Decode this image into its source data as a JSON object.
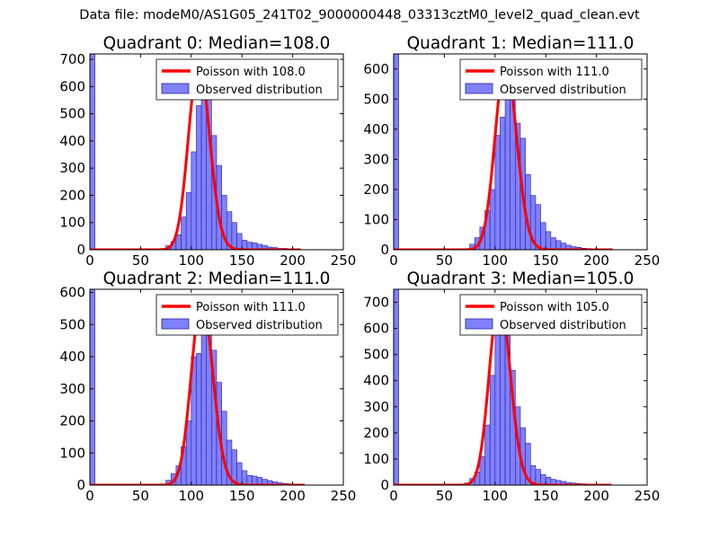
{
  "figure_title": "Data file: modeM0/AS1G05_241T02_9000000448_03313cztM0_level2_quad_clean.evt",
  "colors": {
    "bar_fill": "#8080ff",
    "bar_stroke": "#2020a0",
    "poisson_line": "#ff0000",
    "axis": "#000000"
  },
  "chart_data": [
    {
      "type": "bar",
      "title": "Quadrant 0: Median=108.0",
      "xlim": [
        0,
        250
      ],
      "ylim": [
        0,
        720
      ],
      "xticks": [
        0,
        50,
        100,
        150,
        200,
        250
      ],
      "yticks": [
        0,
        100,
        200,
        300,
        400,
        500,
        600,
        700
      ],
      "legend_position": "top-right",
      "legend": [
        "Poisson with 108.0",
        "Observed distribution"
      ],
      "bin_width": 5,
      "bins": [
        [
          0,
          720
        ],
        [
          70,
          4
        ],
        [
          75,
          15
        ],
        [
          80,
          30
        ],
        [
          85,
          55
        ],
        [
          90,
          120
        ],
        [
          95,
          210
        ],
        [
          100,
          360
        ],
        [
          105,
          530
        ],
        [
          110,
          610
        ],
        [
          115,
          580
        ],
        [
          120,
          420
        ],
        [
          125,
          310
        ],
        [
          130,
          200
        ],
        [
          135,
          140
        ],
        [
          140,
          100
        ],
        [
          145,
          60
        ],
        [
          150,
          35
        ],
        [
          155,
          28
        ],
        [
          160,
          25
        ],
        [
          165,
          20
        ],
        [
          170,
          16
        ],
        [
          175,
          10
        ],
        [
          180,
          8
        ],
        [
          185,
          5
        ],
        [
          190,
          5
        ],
        [
          195,
          3
        ],
        [
          200,
          2
        ]
      ],
      "poisson_lambda": 108.0,
      "poisson_peak": 690,
      "poisson_range": [
        0,
        208
      ]
    },
    {
      "type": "bar",
      "title": "Quadrant 1: Median=111.0",
      "xlim": [
        0,
        250
      ],
      "ylim": [
        0,
        650
      ],
      "xticks": [
        0,
        50,
        100,
        150,
        200,
        250
      ],
      "yticks": [
        0,
        100,
        200,
        300,
        400,
        500,
        600
      ],
      "legend_position": "top-right",
      "legend": [
        "Poisson with 111.0",
        "Observed distribution"
      ],
      "bin_width": 5,
      "bins": [
        [
          0,
          650
        ],
        [
          75,
          18
        ],
        [
          80,
          40
        ],
        [
          85,
          75
        ],
        [
          90,
          130
        ],
        [
          95,
          200
        ],
        [
          100,
          380
        ],
        [
          105,
          440
        ],
        [
          110,
          620
        ],
        [
          115,
          600
        ],
        [
          120,
          420
        ],
        [
          125,
          370
        ],
        [
          130,
          250
        ],
        [
          135,
          180
        ],
        [
          140,
          150
        ],
        [
          145,
          90
        ],
        [
          150,
          60
        ],
        [
          155,
          40
        ],
        [
          160,
          30
        ],
        [
          165,
          22
        ],
        [
          170,
          15
        ],
        [
          175,
          10
        ],
        [
          180,
          8
        ],
        [
          185,
          5
        ],
        [
          190,
          4
        ],
        [
          195,
          3
        ],
        [
          200,
          2
        ]
      ],
      "poisson_lambda": 111.0,
      "poisson_peak": 625,
      "poisson_range": [
        0,
        216
      ]
    },
    {
      "type": "bar",
      "title": "Quadrant 2: Median=111.0",
      "xlim": [
        0,
        250
      ],
      "ylim": [
        0,
        610
      ],
      "xticks": [
        0,
        50,
        100,
        150,
        200,
        250
      ],
      "yticks": [
        0,
        100,
        200,
        300,
        400,
        500,
        600
      ],
      "legend_position": "top-right",
      "legend": [
        "Poisson with 111.0",
        "Observed distribution"
      ],
      "bin_width": 5,
      "bins": [
        [
          0,
          610
        ],
        [
          75,
          15
        ],
        [
          80,
          35
        ],
        [
          85,
          60
        ],
        [
          90,
          120
        ],
        [
          95,
          200
        ],
        [
          100,
          400
        ],
        [
          105,
          410
        ],
        [
          110,
          580
        ],
        [
          115,
          560
        ],
        [
          120,
          420
        ],
        [
          125,
          320
        ],
        [
          130,
          230
        ],
        [
          135,
          140
        ],
        [
          140,
          110
        ],
        [
          145,
          70
        ],
        [
          150,
          45
        ],
        [
          155,
          30
        ],
        [
          160,
          28
        ],
        [
          165,
          24
        ],
        [
          170,
          18
        ],
        [
          175,
          14
        ],
        [
          180,
          10
        ],
        [
          185,
          7
        ],
        [
          190,
          5
        ],
        [
          195,
          4
        ],
        [
          200,
          3
        ]
      ],
      "poisson_lambda": 111.0,
      "poisson_peak": 580,
      "poisson_range": [
        0,
        212
      ]
    },
    {
      "type": "bar",
      "title": "Quadrant 3: Median=105.0",
      "xlim": [
        0,
        250
      ],
      "ylim": [
        0,
        750
      ],
      "xticks": [
        0,
        50,
        100,
        150,
        200,
        250
      ],
      "yticks": [
        0,
        100,
        200,
        300,
        400,
        500,
        600,
        700
      ],
      "legend_position": "top-right",
      "legend": [
        "Poisson with 105.0",
        "Observed distribution"
      ],
      "bin_width": 5,
      "bins": [
        [
          0,
          750
        ],
        [
          70,
          8
        ],
        [
          75,
          25
        ],
        [
          80,
          50
        ],
        [
          85,
          110
        ],
        [
          90,
          230
        ],
        [
          95,
          420
        ],
        [
          100,
          610
        ],
        [
          105,
          720
        ],
        [
          110,
          600
        ],
        [
          115,
          440
        ],
        [
          120,
          300
        ],
        [
          125,
          220
        ],
        [
          130,
          160
        ],
        [
          135,
          75
        ],
        [
          140,
          60
        ],
        [
          145,
          40
        ],
        [
          150,
          30
        ],
        [
          155,
          22
        ],
        [
          160,
          18
        ],
        [
          165,
          14
        ],
        [
          170,
          10
        ],
        [
          175,
          8
        ],
        [
          180,
          6
        ],
        [
          185,
          5
        ],
        [
          190,
          3
        ],
        [
          195,
          2
        ]
      ],
      "poisson_lambda": 105.0,
      "poisson_peak": 720,
      "poisson_range": [
        0,
        215
      ]
    }
  ]
}
